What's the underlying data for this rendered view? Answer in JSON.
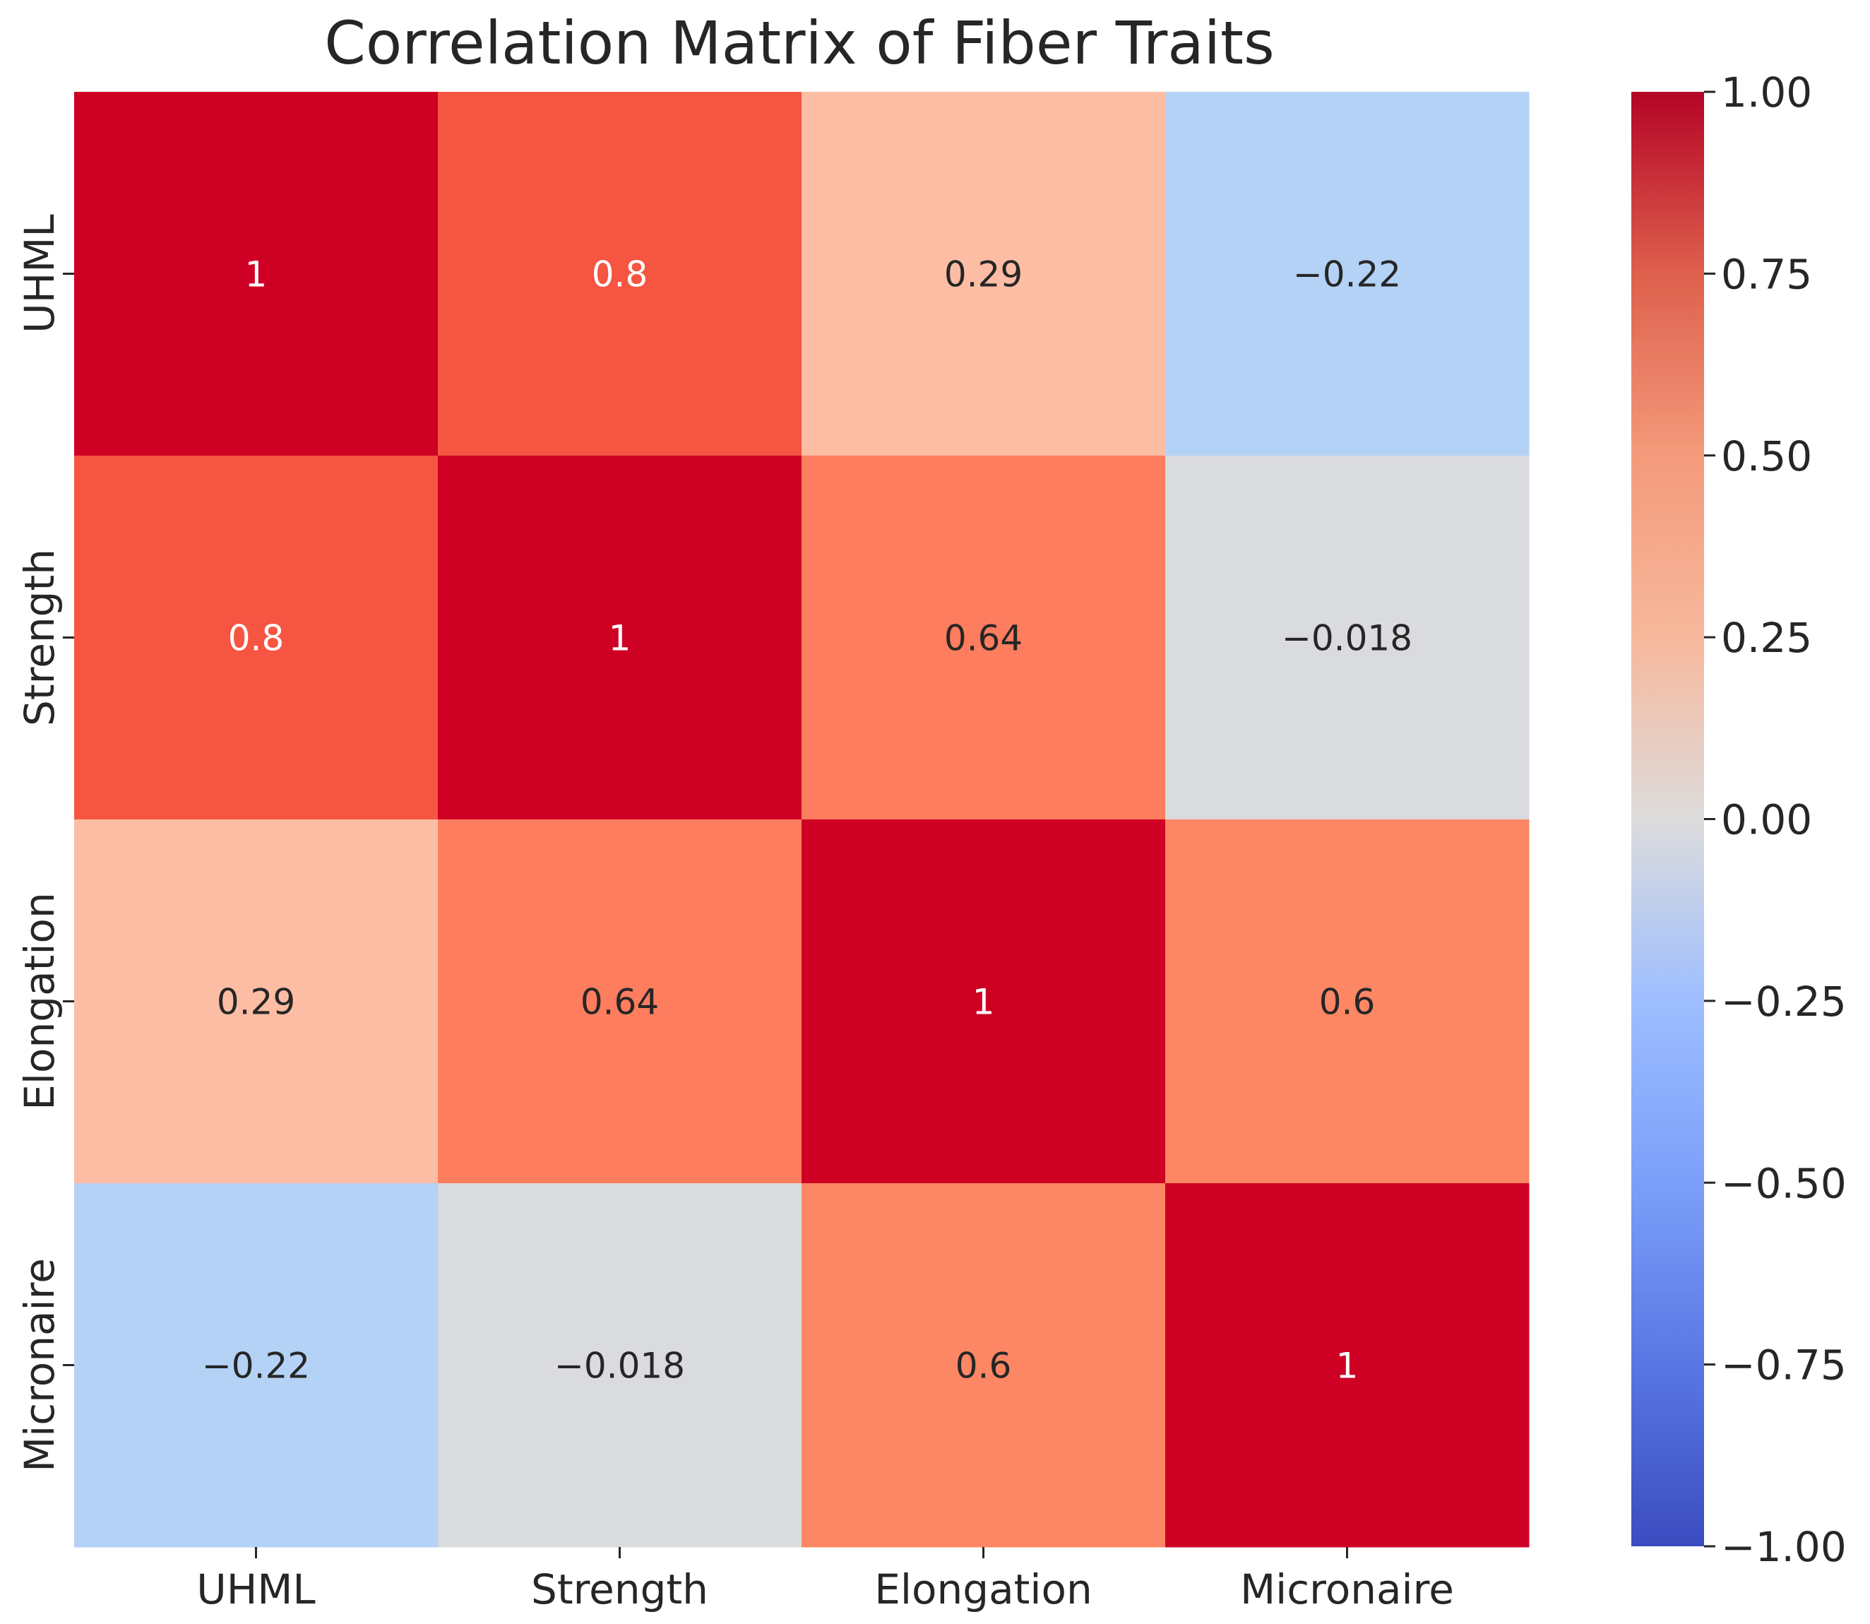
{
  "chart_data": {
    "type": "heatmap",
    "title": "Correlation Matrix of Fiber Traits",
    "xlabel": "",
    "ylabel": "",
    "x_categories": [
      "UHML",
      "Strength",
      "Elongation",
      "Micronaire"
    ],
    "y_categories": [
      "UHML",
      "Strength",
      "Elongation",
      "Micronaire"
    ],
    "values": [
      [
        1,
        0.8,
        0.29,
        -0.22
      ],
      [
        0.8,
        1,
        0.64,
        -0.018
      ],
      [
        0.29,
        0.64,
        1,
        0.6
      ],
      [
        -0.22,
        -0.018,
        0.6,
        1
      ]
    ],
    "cell_labels": [
      [
        "1",
        "0.8",
        "0.29",
        "−0.22"
      ],
      [
        "0.8",
        "1",
        "0.64",
        "−0.018"
      ],
      [
        "0.29",
        "0.64",
        "1",
        "0.6"
      ],
      [
        "−0.22",
        "−0.018",
        "0.6",
        "1"
      ]
    ],
    "colormap": "coolwarm",
    "vmin": -1,
    "vmax": 1,
    "colorbar_ticks": [
      1.0,
      0.75,
      0.5,
      0.25,
      0.0,
      -0.25,
      -0.5,
      -0.75,
      -1.0
    ],
    "colorbar_tick_labels": [
      "1.00",
      "0.75",
      "0.50",
      "0.25",
      "0.00",
      "−0.25",
      "−0.50",
      "−0.75",
      "−1.00"
    ],
    "colorbar_position": "right"
  }
}
